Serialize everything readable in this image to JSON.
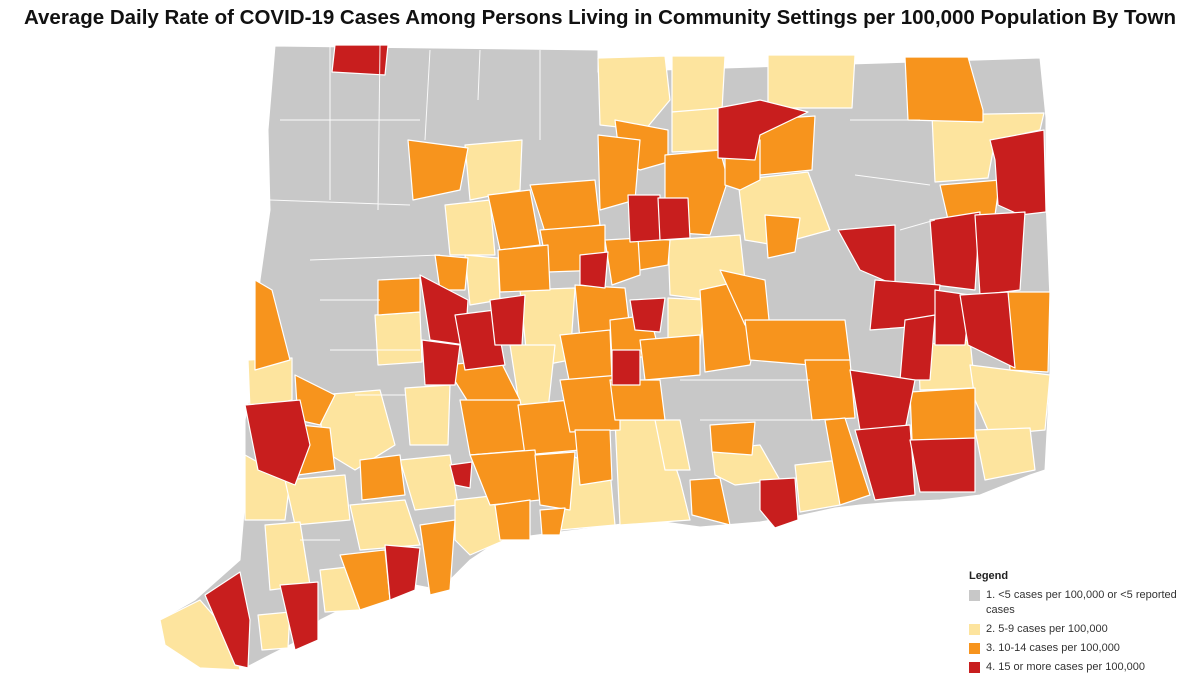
{
  "title": "Average Daily Rate of COVID-19 Cases Among Persons Living in Community Settings per 100,000 Population By Town",
  "legend": {
    "title": "Legend",
    "items": [
      {
        "label": "1. <5 cases per 100,000 or <5 reported cases",
        "color": "#c8c8c8"
      },
      {
        "label": "2. 5-9 cases per 100,000",
        "color": "#fde49e"
      },
      {
        "label": "3. 10-14 cases per 100,000",
        "color": "#f7941d"
      },
      {
        "label": "4. 15 or more cases per 100,000",
        "color": "#c81e1e"
      }
    ]
  }
}
